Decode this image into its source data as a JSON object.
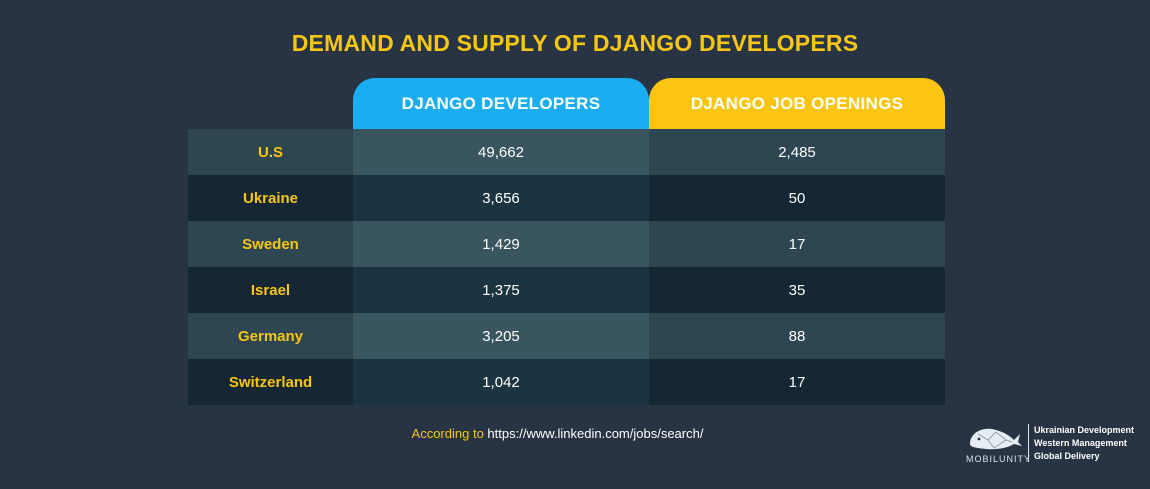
{
  "chart_data": {
    "type": "table",
    "title": "DEMAND AND SUPPLY OF DJANGO DEVELOPERS",
    "columns": [
      "DJANGO DEVELOPERS",
      "DJANGO JOB OPENINGS"
    ],
    "rows": [
      {
        "country": "U.S",
        "developers": "49,662",
        "openings": "2,485"
      },
      {
        "country": "Ukraine",
        "developers": "3,656",
        "openings": "50"
      },
      {
        "country": "Sweden",
        "developers": "1,429",
        "openings": "17"
      },
      {
        "country": "Israel",
        "developers": "1,375",
        "openings": "35"
      },
      {
        "country": "Germany",
        "developers": "3,205",
        "openings": "88"
      },
      {
        "country": "Switzerland",
        "developers": "1,042",
        "openings": "17"
      }
    ]
  },
  "source": {
    "label": "According to",
    "url": "https://www.linkedin.com/jobs/search/"
  },
  "logo": {
    "brand": "MOBILUNITY",
    "taglines": [
      "Ukrainian Development",
      "Western Management",
      "Global Delivery"
    ]
  },
  "colors": {
    "background": "#283444",
    "accent_yellow": "#f7c613",
    "accent_blue": "#1aaef0"
  }
}
